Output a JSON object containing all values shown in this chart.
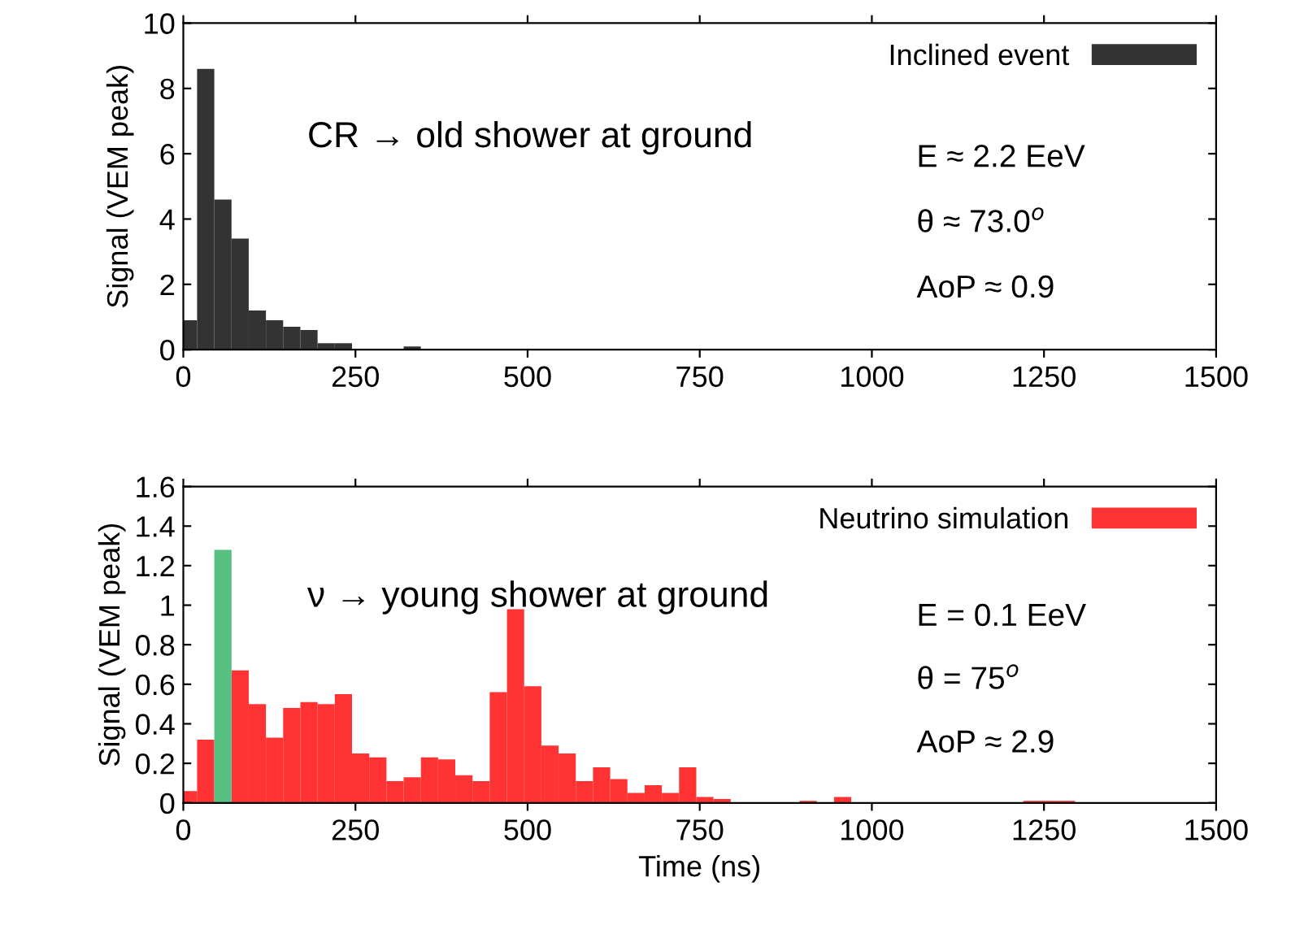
{
  "chart_data": [
    {
      "type": "histogram",
      "bins": [
        -5,
        20,
        45,
        70,
        95,
        120,
        145,
        170,
        195,
        220,
        245,
        270,
        295,
        320,
        345
      ],
      "series": [
        {
          "name": "Inclined event",
          "color": "#333333",
          "values": [
            0.9,
            8.6,
            4.6,
            3.4,
            1.2,
            0.9,
            0.7,
            0.6,
            0.2,
            0.2,
            0,
            0,
            0,
            0.1
          ]
        }
      ],
      "xlim": [
        0,
        1500
      ],
      "xticks": [
        0,
        250,
        500,
        750,
        1000,
        1250,
        1500
      ],
      "ylim": [
        0,
        10
      ],
      "yticks": [
        0,
        2,
        4,
        6,
        8,
        10
      ],
      "ylabel": "Signal (VEM peak)",
      "legend": "top right",
      "grid": false,
      "annotations": [
        "CR → old shower at ground",
        "E ≈ 2.2 EeV",
        "θ ≈ 73.0$^{o}$",
        "AoP ≈ 0.9"
      ]
    },
    {
      "type": "histogram",
      "bins": [
        -5,
        20,
        45,
        70,
        95,
        120,
        145,
        170,
        195,
        220,
        245,
        270,
        295,
        320,
        345,
        370,
        395,
        420,
        445,
        470,
        495,
        520,
        545,
        570,
        595,
        620,
        645,
        670,
        695,
        720,
        745,
        770,
        795,
        820,
        845,
        870,
        895,
        920,
        945,
        970,
        995,
        1020,
        1045,
        1070,
        1095,
        1120,
        1145,
        1170,
        1195,
        1220,
        1245,
        1270,
        1295
      ],
      "series": [
        {
          "name": "Neutrino simulation",
          "color": "#ff3333",
          "values": [
            0.06,
            0.32,
            null,
            0.67,
            0.5,
            0.33,
            0.48,
            0.51,
            0.5,
            0.55,
            0.25,
            0.23,
            0.11,
            0.13,
            0.23,
            0.22,
            0.14,
            0.11,
            0.56,
            0.98,
            0.59,
            0.29,
            0.25,
            0.11,
            0.18,
            0.12,
            0.05,
            0.09,
            0.05,
            0.18,
            0.03,
            0.02,
            0,
            0,
            0,
            0,
            0.01,
            0,
            0.03,
            0,
            0,
            0,
            0,
            0,
            0,
            0,
            0,
            0,
            0,
            0.01,
            0.01,
            0.01
          ]
        },
        {
          "color": "#55c080",
          "values": [
            null,
            null,
            1.28,
            null,
            null,
            null,
            null,
            null,
            null,
            null,
            null,
            null,
            null,
            null,
            null,
            null,
            null,
            null,
            null,
            null,
            null,
            null,
            null,
            null,
            null,
            null,
            null,
            null,
            null,
            null,
            null,
            null,
            null,
            null,
            null,
            null,
            null,
            null,
            null,
            null,
            null,
            null,
            null,
            null,
            null,
            null,
            null,
            null,
            null,
            null,
            null,
            null
          ]
        }
      ],
      "xlim": [
        0,
        1500
      ],
      "xticks": [
        0,
        250,
        500,
        750,
        1000,
        1250,
        1500
      ],
      "ylim": [
        0,
        1.6
      ],
      "yticks": [
        0,
        {
          "value": 0.2,
          "label": "0.2"
        },
        {
          "value": 0.4,
          "label": "0.4"
        },
        {
          "value": 0.6,
          "label": "0.6"
        },
        {
          "value": 0.8,
          "label": "0.8"
        },
        1,
        {
          "value": 1.2,
          "label": "1.2"
        },
        {
          "value": 1.4,
          "label": "1.4"
        },
        {
          "value": 1.6,
          "label": "1.6"
        }
      ],
      "xlabel": "Time (ns)",
      "ylabel": "Signal (VEM peak)",
      "legend": "top right",
      "grid": false,
      "annotations": [
        "ν → young shower at ground",
        "E = 0.1 EeV",
        "θ = 75$^{o}$",
        "AoP ≈ 2.9"
      ]
    }
  ]
}
